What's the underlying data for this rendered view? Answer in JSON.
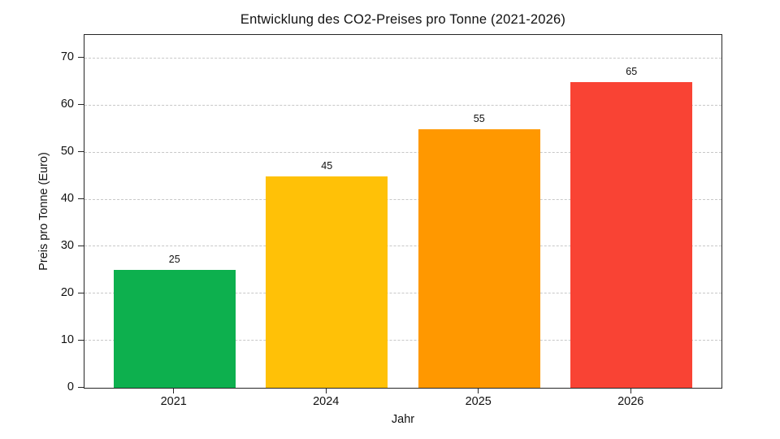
{
  "chart_data": {
    "type": "bar",
    "title": "Entwicklung des CO2-Preises pro Tonne (2021-2026)",
    "xlabel": "Jahr",
    "ylabel": "Preis pro Tonne (Euro)",
    "categories": [
      "2021",
      "2024",
      "2025",
      "2026"
    ],
    "values": [
      25,
      45,
      55,
      65
    ],
    "value_labels": [
      "25",
      "45",
      "55",
      "65"
    ],
    "bar_colors": [
      "#0db04e",
      "#ffc107",
      "#ff9800",
      "#f94334"
    ],
    "yticks": [
      0,
      10,
      20,
      30,
      40,
      50,
      60,
      70
    ],
    "ylim": [
      0,
      75
    ],
    "grid": "horizontal-dashed",
    "grid_color": "#c8c8c8",
    "frame_color": "#262626",
    "legend": "none",
    "background": "#ffffff"
  }
}
